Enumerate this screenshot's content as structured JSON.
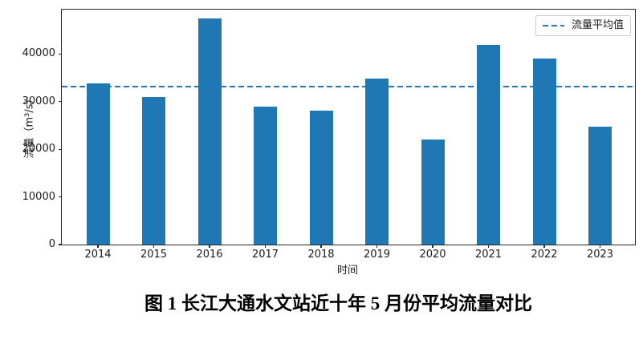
{
  "figure": {
    "caption": "图 1 长江大通水文站近十年 5 月份平均流量对比"
  },
  "chart_data": {
    "type": "bar",
    "title": "",
    "categories": [
      "2014",
      "2015",
      "2016",
      "2017",
      "2018",
      "2019",
      "2020",
      "2021",
      "2022",
      "2023"
    ],
    "values": [
      33800,
      31000,
      47400,
      29000,
      28100,
      34800,
      22100,
      41900,
      39100,
      24800
    ],
    "xlabel": "时间",
    "ylabel": "流量（m³/s）",
    "yticks": [
      0,
      10000,
      20000,
      30000,
      40000
    ],
    "ylim": [
      0,
      49300
    ],
    "grid": false,
    "bar_color": "#1f77b4",
    "average_line": {
      "label": "流量平均值",
      "value": 33200,
      "style": "dashed",
      "color": "#1f77b4"
    },
    "legend": {
      "position": "upper right",
      "entries": [
        "流量平均值"
      ]
    }
  }
}
